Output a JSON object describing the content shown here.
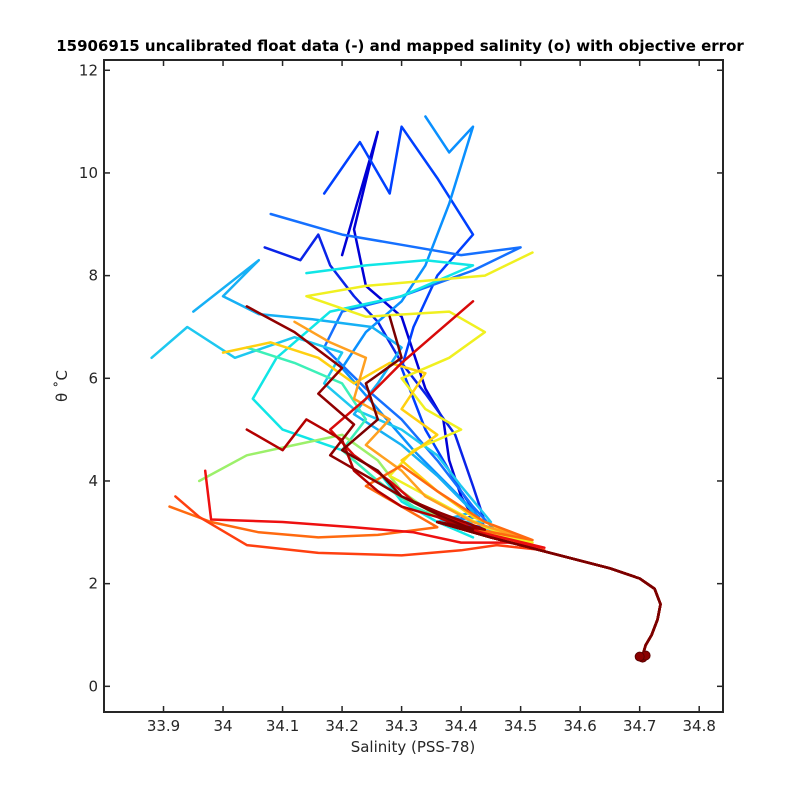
{
  "chart_data": {
    "type": "line",
    "title": "15906915 uncalibrated float data (-) and mapped salinity (o) with objective error",
    "xlabel": "Salinity (PSS-78)",
    "ylabel": "θ ˚C",
    "xlim": [
      33.8,
      34.84
    ],
    "ylim": [
      -0.5,
      12.2
    ],
    "x_ticks": [
      33.9,
      34.0,
      34.1,
      34.2,
      34.3,
      34.4,
      34.5,
      34.6,
      34.7,
      34.8
    ],
    "x_tick_labels": [
      "33.9",
      "34",
      "34.1",
      "34.2",
      "34.3",
      "34.4",
      "34.5",
      "34.6",
      "34.7",
      "34.8"
    ],
    "y_ticks": [
      0,
      2,
      4,
      6,
      8,
      10,
      12
    ],
    "y_tick_labels": [
      "0",
      "2",
      "4",
      "6",
      "8",
      "10",
      "12"
    ],
    "grid": false,
    "colormap": [
      "#00008f",
      "#0000ff",
      "#0080ff",
      "#00ffff",
      "#80ff80",
      "#ffff00",
      "#ff8000",
      "#ff0000",
      "#800000"
    ],
    "deep_tail": [
      [
        34.36,
        3.2
      ],
      [
        34.45,
        2.9
      ],
      [
        34.55,
        2.6
      ],
      [
        34.65,
        2.3
      ],
      [
        34.7,
        2.1
      ],
      [
        34.725,
        1.9
      ],
      [
        34.735,
        1.6
      ],
      [
        34.73,
        1.3
      ],
      [
        34.72,
        1.0
      ],
      [
        34.71,
        0.8
      ],
      [
        34.705,
        0.6
      ]
    ],
    "mapped_salinity_markers": [
      [
        34.705,
        0.56
      ],
      [
        34.71,
        0.6
      ],
      [
        34.7,
        0.58
      ]
    ],
    "series": [
      {
        "color": "#0000d6",
        "values": [
          [
            34.2,
            8.4
          ],
          [
            34.22,
            9.2
          ],
          [
            34.26,
            10.8
          ],
          [
            34.22,
            8.9
          ],
          [
            34.24,
            7.8
          ],
          [
            34.3,
            7.2
          ],
          [
            34.34,
            5.8
          ],
          [
            34.37,
            5.2
          ],
          [
            34.38,
            4.4
          ],
          [
            34.4,
            3.7
          ],
          [
            34.42,
            3.3
          ]
        ]
      },
      {
        "color": "#0a24e8",
        "values": [
          [
            34.07,
            8.55
          ],
          [
            34.13,
            8.3
          ],
          [
            34.16,
            8.8
          ],
          [
            34.18,
            8.2
          ],
          [
            34.22,
            7.6
          ],
          [
            34.26,
            7.1
          ],
          [
            34.3,
            6.3
          ],
          [
            34.34,
            5.7
          ],
          [
            34.39,
            4.9
          ],
          [
            34.42,
            3.9
          ],
          [
            34.44,
            3.2
          ]
        ]
      },
      {
        "color": "#0040ff",
        "values": [
          [
            34.17,
            9.6
          ],
          [
            34.23,
            10.6
          ],
          [
            34.28,
            9.6
          ],
          [
            34.3,
            10.9
          ],
          [
            34.36,
            9.9
          ],
          [
            34.42,
            8.8
          ],
          [
            34.36,
            8.0
          ],
          [
            34.32,
            7.0
          ],
          [
            34.3,
            6.2
          ],
          [
            34.34,
            5.0
          ],
          [
            34.4,
            3.8
          ],
          [
            34.44,
            3.1
          ]
        ]
      },
      {
        "color": "#1570ff",
        "values": [
          [
            34.08,
            9.2
          ],
          [
            34.2,
            8.8
          ],
          [
            34.3,
            8.6
          ],
          [
            34.4,
            8.4
          ],
          [
            34.5,
            8.55
          ],
          [
            34.42,
            8.1
          ],
          [
            34.3,
            7.6
          ],
          [
            34.2,
            7.3
          ],
          [
            34.17,
            6.6
          ],
          [
            34.24,
            5.8
          ],
          [
            34.3,
            5.2
          ],
          [
            34.36,
            4.4
          ],
          [
            34.42,
            3.5
          ],
          [
            34.46,
            3.0
          ]
        ]
      },
      {
        "color": "#0a90ff",
        "values": [
          [
            34.34,
            11.1
          ],
          [
            34.38,
            10.4
          ],
          [
            34.42,
            10.9
          ],
          [
            34.38,
            9.4
          ],
          [
            34.34,
            8.2
          ],
          [
            34.3,
            7.5
          ],
          [
            34.24,
            6.9
          ],
          [
            34.2,
            6.2
          ],
          [
            34.26,
            5.4
          ],
          [
            34.32,
            4.6
          ],
          [
            34.38,
            3.9
          ],
          [
            34.43,
            3.3
          ]
        ]
      },
      {
        "color": "#16b0f5",
        "values": [
          [
            33.95,
            7.3
          ],
          [
            34.06,
            8.3
          ],
          [
            34.0,
            7.6
          ],
          [
            34.06,
            7.25
          ],
          [
            34.15,
            7.15
          ],
          [
            34.25,
            7.0
          ],
          [
            34.3,
            6.6
          ],
          [
            34.26,
            5.9
          ],
          [
            34.22,
            5.3
          ],
          [
            34.3,
            4.7
          ],
          [
            34.36,
            4.1
          ],
          [
            34.42,
            3.4
          ]
        ]
      },
      {
        "color": "#1ec8f0",
        "values": [
          [
            33.88,
            6.4
          ],
          [
            33.94,
            7.0
          ],
          [
            34.02,
            6.4
          ],
          [
            34.12,
            6.8
          ],
          [
            34.2,
            6.5
          ],
          [
            34.17,
            5.9
          ],
          [
            34.22,
            5.4
          ],
          [
            34.3,
            5.0
          ],
          [
            34.36,
            4.5
          ],
          [
            34.4,
            3.9
          ],
          [
            34.45,
            3.2
          ]
        ]
      },
      {
        "color": "#10e6e6",
        "values": [
          [
            34.14,
            8.05
          ],
          [
            34.24,
            8.2
          ],
          [
            34.34,
            8.3
          ],
          [
            34.42,
            8.2
          ],
          [
            34.3,
            7.6
          ],
          [
            34.18,
            7.3
          ],
          [
            34.09,
            6.4
          ],
          [
            34.05,
            5.6
          ],
          [
            34.1,
            5.0
          ],
          [
            34.2,
            4.6
          ],
          [
            34.26,
            4.2
          ],
          [
            34.3,
            3.6
          ],
          [
            34.36,
            3.2
          ],
          [
            34.42,
            2.9
          ]
        ]
      },
      {
        "color": "#3cf0b8",
        "values": [
          [
            34.04,
            6.6
          ],
          [
            34.12,
            6.3
          ],
          [
            34.2,
            5.9
          ],
          [
            34.24,
            5.2
          ],
          [
            34.2,
            4.6
          ],
          [
            34.26,
            4.0
          ],
          [
            34.32,
            3.5
          ],
          [
            34.4,
            3.1
          ]
        ]
      },
      {
        "color": "#9cf06a",
        "values": [
          [
            33.96,
            4.0
          ],
          [
            34.04,
            4.5
          ],
          [
            34.12,
            4.7
          ],
          [
            34.2,
            4.9
          ],
          [
            34.26,
            4.4
          ],
          [
            34.3,
            3.8
          ],
          [
            34.36,
            3.3
          ],
          [
            34.44,
            2.95
          ]
        ]
      },
      {
        "color": "#f0f020",
        "values": [
          [
            34.52,
            8.45
          ],
          [
            34.44,
            8.0
          ],
          [
            34.34,
            7.9
          ],
          [
            34.24,
            7.8
          ],
          [
            34.14,
            7.6
          ],
          [
            34.24,
            7.2
          ],
          [
            34.38,
            7.3
          ],
          [
            34.44,
            6.9
          ],
          [
            34.38,
            6.4
          ],
          [
            34.3,
            6.0
          ],
          [
            34.34,
            5.4
          ],
          [
            34.4,
            5.0
          ],
          [
            34.32,
            4.6
          ],
          [
            34.28,
            4.1
          ],
          [
            34.36,
            3.6
          ],
          [
            34.44,
            3.1
          ],
          [
            34.52,
            2.8
          ]
        ]
      },
      {
        "color": "#ffd010",
        "values": [
          [
            34.0,
            6.5
          ],
          [
            34.08,
            6.7
          ],
          [
            34.16,
            6.4
          ],
          [
            34.22,
            5.9
          ],
          [
            34.28,
            6.3
          ],
          [
            34.34,
            6.1
          ],
          [
            34.3,
            5.4
          ],
          [
            34.36,
            4.9
          ],
          [
            34.3,
            4.4
          ],
          [
            34.36,
            3.8
          ],
          [
            34.42,
            3.3
          ],
          [
            34.5,
            2.9
          ]
        ]
      },
      {
        "color": "#ffa020",
        "values": [
          [
            34.12,
            7.1
          ],
          [
            34.18,
            6.7
          ],
          [
            34.24,
            6.4
          ],
          [
            34.22,
            5.6
          ],
          [
            34.28,
            5.2
          ],
          [
            34.24,
            4.7
          ],
          [
            34.3,
            4.2
          ],
          [
            34.34,
            3.7
          ],
          [
            34.42,
            3.2
          ],
          [
            34.5,
            2.9
          ]
        ]
      },
      {
        "color": "#ff6a10",
        "values": [
          [
            33.91,
            3.5
          ],
          [
            33.98,
            3.2
          ],
          [
            34.06,
            3.0
          ],
          [
            34.16,
            2.9
          ],
          [
            34.26,
            2.95
          ],
          [
            34.36,
            3.1
          ],
          [
            34.3,
            3.5
          ],
          [
            34.24,
            3.9
          ],
          [
            34.3,
            4.3
          ],
          [
            34.36,
            3.8
          ],
          [
            34.44,
            3.2
          ],
          [
            34.52,
            2.85
          ]
        ]
      },
      {
        "color": "#ff4010",
        "values": [
          [
            33.92,
            3.7
          ],
          [
            33.96,
            3.3
          ],
          [
            34.04,
            2.75
          ],
          [
            34.16,
            2.6
          ],
          [
            34.3,
            2.55
          ],
          [
            34.4,
            2.65
          ],
          [
            34.46,
            2.75
          ],
          [
            34.54,
            2.65
          ]
        ]
      },
      {
        "color": "#ee1010",
        "values": [
          [
            33.97,
            4.2
          ],
          [
            33.98,
            3.25
          ],
          [
            34.1,
            3.2
          ],
          [
            34.22,
            3.1
          ],
          [
            34.32,
            3.0
          ],
          [
            34.4,
            2.8
          ],
          [
            34.48,
            2.8
          ],
          [
            34.54,
            2.7
          ]
        ]
      },
      {
        "color": "#d80a0a",
        "values": [
          [
            34.42,
            7.5
          ],
          [
            34.36,
            6.9
          ],
          [
            34.3,
            6.3
          ],
          [
            34.24,
            5.6
          ],
          [
            34.18,
            5.0
          ],
          [
            34.22,
            4.5
          ],
          [
            34.28,
            4.0
          ],
          [
            34.32,
            3.6
          ],
          [
            34.38,
            3.3
          ],
          [
            34.44,
            2.95
          ]
        ]
      },
      {
        "color": "#b40000",
        "values": [
          [
            34.04,
            5.0
          ],
          [
            34.1,
            4.6
          ],
          [
            34.14,
            5.2
          ],
          [
            34.2,
            4.8
          ],
          [
            34.22,
            4.2
          ],
          [
            34.26,
            3.8
          ],
          [
            34.3,
            3.5
          ],
          [
            34.36,
            3.3
          ],
          [
            34.42,
            3.0
          ]
        ]
      },
      {
        "color": "#900000",
        "values": [
          [
            34.04,
            7.4
          ],
          [
            34.12,
            6.9
          ],
          [
            34.2,
            6.2
          ],
          [
            34.16,
            5.7
          ],
          [
            34.22,
            5.1
          ],
          [
            34.18,
            4.5
          ],
          [
            34.24,
            4.1
          ],
          [
            34.3,
            3.7
          ],
          [
            34.36,
            3.4
          ],
          [
            34.44,
            3.05
          ]
        ]
      },
      {
        "color": "#7a0000",
        "values": [
          [
            34.28,
            7.2
          ],
          [
            34.3,
            6.4
          ],
          [
            34.24,
            5.9
          ],
          [
            34.26,
            5.2
          ],
          [
            34.2,
            4.6
          ],
          [
            34.26,
            4.2
          ],
          [
            34.3,
            3.7
          ],
          [
            34.36,
            3.35
          ],
          [
            34.42,
            3.05
          ]
        ]
      }
    ]
  }
}
